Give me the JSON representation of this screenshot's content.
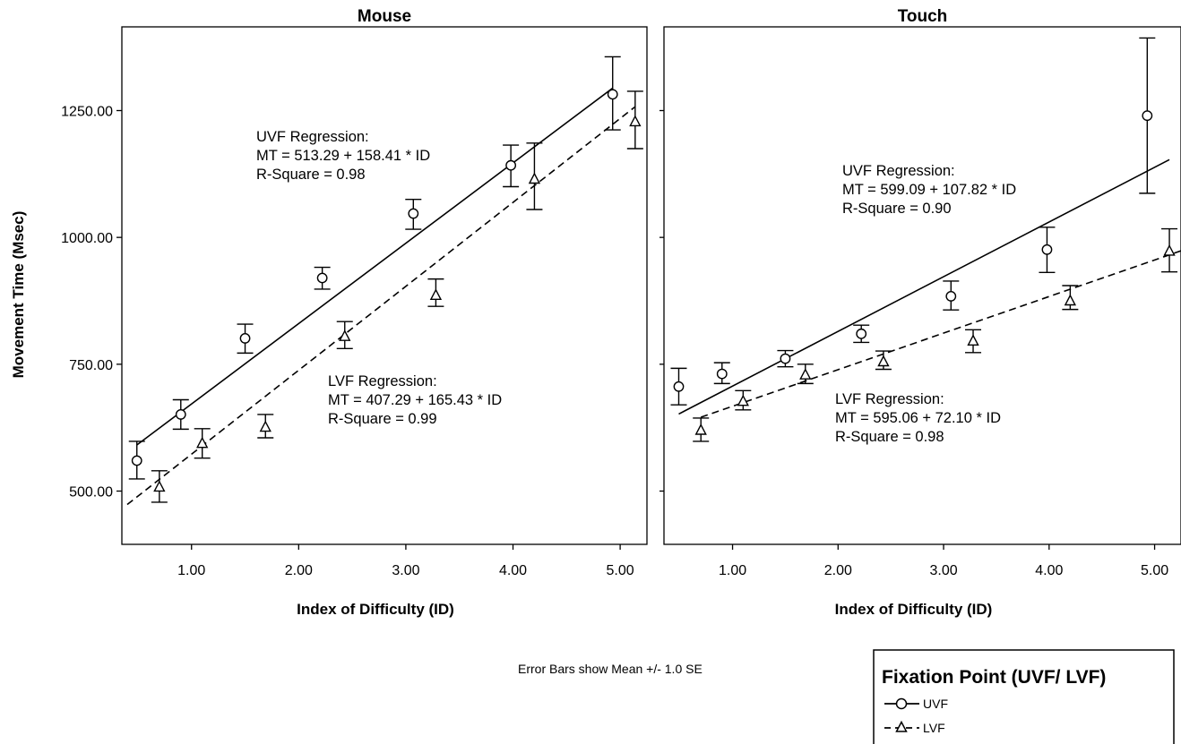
{
  "chart_data": [
    {
      "type": "scatter",
      "title": "Mouse",
      "xlabel": "Index of Difficulty (ID)",
      "ylabel": "Movement Time (Msec)",
      "xlim": [
        0.35,
        5.25
      ],
      "ylim": [
        395,
        1415
      ],
      "xticks": [
        1,
        2,
        3,
        4,
        5
      ],
      "xtick_labels": [
        "1.00",
        "2.00",
        "3.00",
        "4.00",
        "5.00"
      ],
      "yticks": [
        500,
        750,
        1000,
        1250
      ],
      "ytick_labels": [
        "500.00",
        "750.00",
        "1000.00",
        "1250.00"
      ],
      "series": [
        {
          "name": "UVF",
          "marker": "circle",
          "line": "solid",
          "x": [
            0.49,
            0.9,
            1.5,
            2.22,
            3.07,
            3.98,
            4.93
          ],
          "y": [
            560,
            651,
            801,
            920,
            1047,
            1142,
            1282
          ],
          "err_low": [
            524,
            622,
            772,
            898,
            1016,
            1100,
            1212
          ],
          "err_high": [
            598,
            680,
            829,
            941,
            1075,
            1182,
            1356
          ],
          "regression": {
            "intercept": 513.29,
            "slope": 158.41,
            "x_from": 0.49,
            "x_to": 4.93
          }
        },
        {
          "name": "LVF",
          "marker": "triangle",
          "line": "dashed",
          "x": [
            0.7,
            1.1,
            1.69,
            2.43,
            3.28,
            4.2,
            5.14
          ],
          "y": [
            508,
            594,
            626,
            805,
            886,
            1115,
            1228
          ],
          "err_low": [
            478,
            565,
            605,
            781,
            864,
            1055,
            1175
          ],
          "err_high": [
            540,
            623,
            651,
            834,
            918,
            1186,
            1288
          ],
          "regression": {
            "intercept": 407.29,
            "slope": 165.43,
            "x_from": 0.4,
            "x_to": 5.14
          }
        }
      ],
      "annotations": [
        {
          "series": "UVF",
          "lines": [
            "UVF Regression:",
            "MT = 513.29 + 158.41 * ID",
            "R-Square = 0.98"
          ]
        },
        {
          "series": "LVF",
          "lines": [
            "LVF Regression:",
            "MT = 407.29 + 165.43 * ID",
            "R-Square = 0.99"
          ]
        }
      ]
    },
    {
      "type": "scatter",
      "title": "Touch",
      "xlabel": "Index of Difficulty (ID)",
      "ylabel": "",
      "xlim": [
        0.35,
        5.25
      ],
      "ylim": [
        395,
        1415
      ],
      "xticks": [
        1,
        2,
        3,
        4,
        5
      ],
      "xtick_labels": [
        "1.00",
        "2.00",
        "3.00",
        "4.00",
        "5.00"
      ],
      "yticks": [
        500,
        750,
        1000,
        1250
      ],
      "ytick_labels": [],
      "series": [
        {
          "name": "UVF",
          "marker": "circle",
          "line": "solid",
          "x": [
            0.49,
            0.9,
            1.5,
            2.22,
            3.07,
            3.98,
            4.93
          ],
          "y": [
            706,
            731,
            761,
            810,
            884,
            976,
            1240
          ],
          "err_low": [
            670,
            712,
            745,
            793,
            857,
            931,
            1087
          ],
          "err_high": [
            742,
            753,
            777,
            827,
            914,
            1020,
            1393
          ],
          "regression": {
            "intercept": 599.09,
            "slope": 107.82,
            "x_from": 0.49,
            "x_to": 5.14
          }
        },
        {
          "name": "LVF",
          "marker": "triangle",
          "line": "dashed",
          "x": [
            0.7,
            1.1,
            1.69,
            2.43,
            3.28,
            4.2,
            5.14
          ],
          "y": [
            620,
            677,
            729,
            755,
            796,
            875,
            973
          ],
          "err_low": [
            598,
            660,
            712,
            740,
            773,
            858,
            932
          ],
          "err_high": [
            644,
            698,
            750,
            776,
            818,
            905,
            1017
          ],
          "regression": {
            "intercept": 595.06,
            "slope": 72.1,
            "x_from": 0.7,
            "x_to": 5.25
          }
        }
      ],
      "annotations": [
        {
          "series": "UVF",
          "lines": [
            "UVF Regression:",
            "MT = 599.09 + 107.82 * ID",
            "R-Square = 0.90"
          ]
        },
        {
          "series": "LVF",
          "lines": [
            "LVF Regression:",
            "MT = 595.06 + 72.10 * ID",
            "R-Square = 0.98"
          ]
        }
      ]
    }
  ],
  "footnote": "Error Bars show Mean +/- 1.0 SE",
  "legend": {
    "title": "Fixation Point (UVF/ LVF)",
    "items": [
      "UVF",
      "LVF"
    ]
  }
}
